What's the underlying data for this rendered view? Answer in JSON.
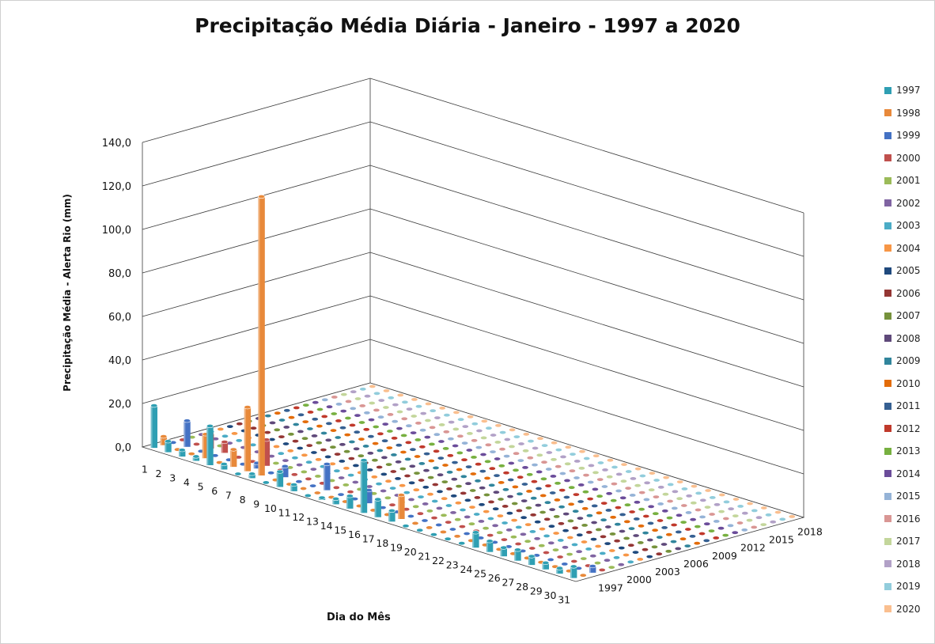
{
  "chart_data": {
    "type": "bar",
    "subtype": "3d-clustered-column",
    "title": "Precipitação Média Diária - Janeiro - 1997 a 2020",
    "xlabel": "Dia do Mês",
    "ylabel": "Precipitação Média - Alerta Rio (mm)",
    "ylim": [
      0,
      140
    ],
    "yticks": [
      "0,0",
      "20,0",
      "40,0",
      "60,0",
      "80,0",
      "100,0",
      "120,0",
      "140,0"
    ],
    "days": [
      "1",
      "2",
      "3",
      "4",
      "5",
      "6",
      "7",
      "8",
      "9",
      "10",
      "11",
      "12",
      "13",
      "14",
      "15",
      "16",
      "17",
      "18",
      "19",
      "20",
      "21",
      "22",
      "23",
      "24",
      "25",
      "26",
      "27",
      "28",
      "29",
      "30",
      "31"
    ],
    "depth_axis_labels": [
      "1997",
      "2000",
      "2003",
      "2006",
      "2009",
      "2012",
      "2015",
      "2018"
    ],
    "legend_position": "right",
    "grid": true,
    "series": [
      {
        "name": "1997",
        "color": "#2f9fb3",
        "values": [
          19.4,
          5.0,
          3.0,
          2.0,
          18.0,
          2.5,
          0.0,
          2.0,
          0.0,
          7.0,
          3.0,
          0.0,
          1.0,
          2.5,
          5.8,
          24.2,
          8.2,
          5.0,
          0.0,
          0.0,
          0.0,
          0.0,
          0.0,
          7.0,
          5.0,
          4.0,
          5.0,
          4.0,
          3.0,
          2.5,
          5.3
        ]
      },
      {
        "name": "1998",
        "color": "#e8893a",
        "values": [
          4.0,
          0,
          0,
          11.0,
          0,
          8.0,
          29.4,
          128.2,
          0,
          0,
          0,
          0,
          0,
          0,
          0,
          0,
          0,
          11.0,
          0,
          0,
          0,
          0,
          0,
          0,
          0,
          0,
          0,
          0,
          0,
          0,
          0
        ]
      },
      {
        "name": "1999",
        "color": "#4472c4",
        "values": [
          0,
          12.0,
          0,
          0,
          0,
          0,
          2.5,
          0,
          5.0,
          0,
          0,
          12.0,
          0,
          0,
          6.0,
          0,
          0,
          0,
          0,
          0,
          0,
          0,
          0,
          0,
          0,
          0,
          0,
          0,
          0,
          0,
          3.0
        ]
      },
      {
        "name": "2000",
        "color": "#c0504d",
        "values": [
          0,
          0,
          7.0,
          5.0,
          0,
          0,
          12.0,
          0,
          0,
          0,
          0,
          0,
          0,
          0,
          0,
          0,
          0,
          0,
          0,
          0,
          0,
          0,
          0,
          0,
          0,
          0,
          0,
          0,
          0,
          0,
          0
        ]
      },
      {
        "name": "2001",
        "color": "#9bbb59",
        "values": [
          0,
          0,
          0,
          0,
          0,
          0,
          0,
          0,
          0,
          0,
          0,
          0,
          0,
          0,
          0,
          0,
          0,
          0,
          0,
          0,
          0,
          0,
          0,
          0,
          0,
          0,
          0,
          0,
          0,
          0,
          0
        ]
      },
      {
        "name": "2002",
        "color": "#8064a2",
        "values": [
          0,
          0,
          0,
          0,
          0,
          0,
          0,
          0,
          0,
          0,
          0,
          0,
          0,
          0,
          0,
          0,
          0,
          0,
          0,
          0,
          0,
          0,
          0,
          0,
          0,
          0,
          0,
          0,
          0,
          0,
          0
        ]
      },
      {
        "name": "2003",
        "color": "#4bacc6",
        "values": [
          0,
          0,
          0,
          0,
          0,
          0,
          0,
          0,
          0,
          0,
          0,
          0,
          0,
          0,
          0,
          0,
          0,
          0,
          0,
          0,
          0,
          0,
          0,
          0,
          0,
          0,
          0,
          0,
          0,
          0,
          0
        ]
      },
      {
        "name": "2004",
        "color": "#f79646",
        "values": [
          0,
          0,
          0,
          0,
          0,
          0,
          0,
          0,
          0,
          0,
          0,
          0,
          0,
          0,
          0,
          0,
          0,
          0,
          0,
          0,
          0,
          0,
          0,
          0,
          0,
          0,
          0,
          0,
          0,
          0,
          0
        ]
      },
      {
        "name": "2005",
        "color": "#1f497d",
        "values": [
          0,
          0,
          0,
          0,
          0,
          0,
          0,
          0,
          0,
          0,
          0,
          0,
          0,
          0,
          0,
          0,
          0,
          0,
          0,
          0,
          0,
          0,
          0,
          0,
          0,
          0,
          0,
          0,
          0,
          0,
          0
        ]
      },
      {
        "name": "2006",
        "color": "#943634",
        "values": [
          0,
          0,
          0,
          0,
          0,
          0,
          0,
          0,
          0,
          0,
          0,
          0,
          0,
          0,
          0,
          0,
          0,
          0,
          0,
          0,
          0,
          0,
          0,
          0,
          0,
          0,
          0,
          0,
          0,
          0,
          0
        ]
      },
      {
        "name": "2007",
        "color": "#76923c",
        "values": [
          0,
          0,
          0,
          0,
          0,
          0,
          0,
          0,
          0,
          0,
          0,
          0,
          0,
          0,
          0,
          0,
          0,
          0,
          0,
          0,
          0,
          0,
          0,
          0,
          0,
          0,
          0,
          0,
          0,
          0,
          0
        ]
      },
      {
        "name": "2008",
        "color": "#5f497a",
        "values": [
          0,
          0,
          0,
          0,
          0,
          0,
          0,
          0,
          0,
          0,
          0,
          0,
          0,
          0,
          0,
          0,
          0,
          0,
          0,
          0,
          0,
          0,
          0,
          0,
          0,
          0,
          0,
          0,
          0,
          0,
          0
        ]
      },
      {
        "name": "2009",
        "color": "#31859c",
        "values": [
          0,
          0,
          0,
          0,
          0,
          0,
          0,
          0,
          0,
          0,
          0,
          0,
          0,
          0,
          0,
          0,
          0,
          0,
          0,
          0,
          0,
          0,
          0,
          0,
          0,
          0,
          0,
          0,
          0,
          0,
          0
        ]
      },
      {
        "name": "2010",
        "color": "#e36c09",
        "values": [
          0,
          0,
          0,
          0,
          0,
          0,
          0,
          0,
          0,
          0,
          0,
          0,
          0,
          0,
          0,
          0,
          0,
          0,
          0,
          0,
          0,
          0,
          0,
          0,
          0,
          0,
          0,
          0,
          0,
          0,
          0
        ]
      },
      {
        "name": "2011",
        "color": "#366092",
        "values": [
          0,
          0,
          0,
          0,
          0,
          0,
          0,
          0,
          0,
          0,
          0,
          0,
          0,
          0,
          0,
          0,
          0,
          0,
          0,
          0,
          0,
          0,
          0,
          0,
          0,
          0,
          0,
          0,
          0,
          0,
          0
        ]
      },
      {
        "name": "2012",
        "color": "#c0392b",
        "values": [
          0,
          0,
          0,
          0,
          0,
          0,
          0,
          0,
          0,
          0,
          0,
          0,
          0,
          0,
          0,
          0,
          0,
          0,
          0,
          0,
          0,
          0,
          0,
          0,
          0,
          0,
          0,
          0,
          0,
          0,
          0
        ]
      },
      {
        "name": "2013",
        "color": "#77b040",
        "values": [
          0,
          0,
          0,
          0,
          0,
          0,
          0,
          0,
          0,
          0,
          0,
          0,
          0,
          0,
          0,
          0,
          0,
          0,
          0,
          0,
          0,
          0,
          0,
          0,
          0,
          0,
          0,
          0,
          0,
          0,
          0
        ]
      },
      {
        "name": "2014",
        "color": "#6b4c9a",
        "values": [
          0,
          0,
          0,
          0,
          0,
          0,
          0,
          0,
          0,
          0,
          0,
          0,
          0,
          0,
          0,
          0,
          0,
          0,
          0,
          0,
          0,
          0,
          0,
          0,
          0,
          0,
          0,
          0,
          0,
          0,
          0
        ]
      },
      {
        "name": "2015",
        "color": "#95b3d7",
        "values": [
          0,
          0,
          0,
          0,
          0,
          0,
          0,
          0,
          0,
          0,
          0,
          0,
          0,
          0,
          0,
          0,
          0,
          0,
          0,
          0,
          0,
          0,
          0,
          0,
          0,
          0,
          0,
          0,
          0,
          0,
          0
        ]
      },
      {
        "name": "2016",
        "color": "#d99694",
        "values": [
          0,
          0,
          0,
          0,
          0,
          0,
          0,
          0,
          0,
          0,
          0,
          0,
          0,
          0,
          0,
          0,
          0,
          0,
          0,
          0,
          0,
          0,
          0,
          0,
          0,
          0,
          0,
          0,
          0,
          0,
          0
        ]
      },
      {
        "name": "2017",
        "color": "#c3d69b",
        "values": [
          0,
          0,
          0,
          0,
          0,
          0,
          0,
          0,
          0,
          0,
          0,
          0,
          0,
          0,
          0,
          0,
          0,
          0,
          0,
          0,
          0,
          0,
          0,
          0,
          0,
          0,
          0,
          0,
          0,
          0,
          0
        ]
      },
      {
        "name": "2018",
        "color": "#b2a1c7",
        "values": [
          0,
          0,
          0,
          0,
          0,
          0,
          0,
          0,
          0,
          0,
          0,
          0,
          0,
          0,
          0,
          0,
          0,
          0,
          0,
          0,
          0,
          0,
          0,
          0,
          0,
          0,
          0,
          0,
          0,
          0,
          0
        ]
      },
      {
        "name": "2019",
        "color": "#92cddc",
        "values": [
          0,
          0,
          0,
          0,
          0,
          0,
          0,
          0,
          0,
          0,
          0,
          0,
          0,
          0,
          0,
          0,
          0,
          0,
          0,
          0,
          0,
          0,
          0,
          0,
          0,
          0,
          0,
          0,
          0,
          0,
          0
        ]
      },
      {
        "name": "2020",
        "color": "#fabf8f",
        "values": [
          0,
          0,
          0,
          0,
          0,
          0,
          0,
          0,
          0,
          0,
          0,
          0,
          0,
          0,
          0,
          0,
          0,
          0,
          0,
          0,
          0,
          0,
          0,
          0,
          0,
          0,
          0,
          0,
          0,
          0,
          0
        ]
      }
    ]
  }
}
